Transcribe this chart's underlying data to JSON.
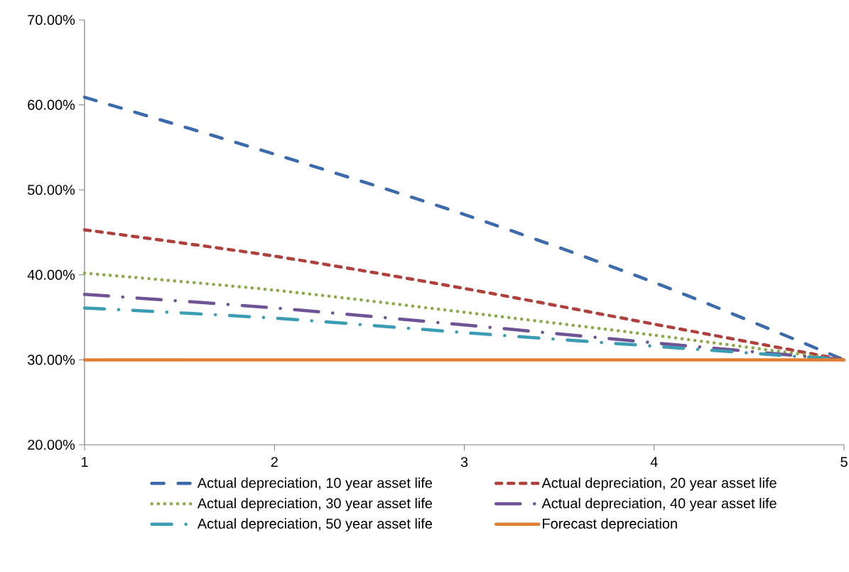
{
  "chart_data": {
    "type": "line",
    "x": [
      1,
      2,
      3,
      4,
      5
    ],
    "xlim": [
      1,
      5
    ],
    "xticks": [
      1,
      2,
      3,
      4,
      5
    ],
    "ylim": [
      20,
      70
    ],
    "yticks": [
      {
        "value": 20,
        "label": "20.00%"
      },
      {
        "value": 30,
        "label": "30.00%"
      },
      {
        "value": 40,
        "label": "40.00%"
      },
      {
        "value": 50,
        "label": "50.00%"
      },
      {
        "value": 60,
        "label": "60.00%"
      },
      {
        "value": 70,
        "label": "70.00%"
      }
    ],
    "legend": "bottom",
    "series": [
      {
        "name": "Actual depreciation, 10 year asset life",
        "color": "#3c6bad",
        "line_style": "dashed",
        "values": [
          60.9,
          54.2,
          47.1,
          39.1,
          30
        ]
      },
      {
        "name": "Actual depreciation, 20 year asset life",
        "color": "#b0403c",
        "line_style": "dashed",
        "values": [
          45.3,
          42.2,
          38.4,
          34.2,
          30
        ]
      },
      {
        "name": "Actual depreciation, 30 year asset life",
        "color": "#8aab4a",
        "line_style": "dotted",
        "values": [
          40.2,
          38.2,
          35.6,
          32.9,
          30
        ]
      },
      {
        "name": "Actual depreciation, 40 year asset life",
        "color": "#6e5494",
        "line_style": "dashdot",
        "values": [
          37.7,
          36.1,
          34.1,
          32.0,
          30
        ]
      },
      {
        "name": "Actual depreciation, 50 year asset life",
        "color": "#3a9db3",
        "line_style": "dashdot",
        "values": [
          36.1,
          34.9,
          33.2,
          31.6,
          30
        ]
      },
      {
        "name": "Forecast depreciation",
        "color": "#e07f34",
        "line_style": "solid",
        "values": [
          30,
          30,
          30,
          30,
          30
        ]
      }
    ]
  }
}
